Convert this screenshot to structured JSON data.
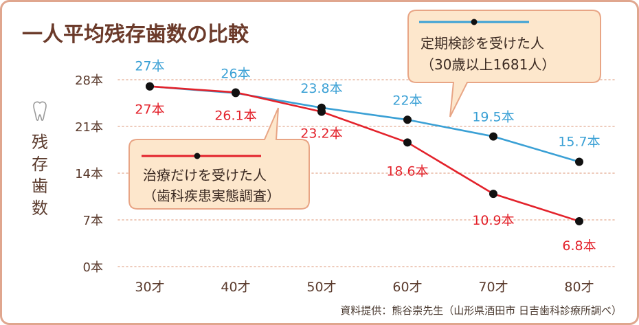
{
  "chart_data": {
    "type": "line",
    "title": "一人平均残存歯数の比較",
    "ylabel": "残存歯数",
    "categories": [
      "30才",
      "40才",
      "50才",
      "60才",
      "70才",
      "80才"
    ],
    "yticks": [
      "0本",
      "7本",
      "14本",
      "21本",
      "28本"
    ],
    "ylim": [
      0,
      28
    ],
    "grid": true,
    "series": [
      {
        "name": "定期検診を受けた人",
        "note": "（30歳以上1681人）",
        "color": "#3aa0d5",
        "values": [
          27,
          26,
          23.8,
          22,
          19.5,
          15.7
        ],
        "labels": [
          "27本",
          "26本",
          "23.8本",
          "22本",
          "19.5本",
          "15.7本"
        ]
      },
      {
        "name": "治療だけを受けた人",
        "note": "（歯科疾患実態調査）",
        "color": "#e3222b",
        "values": [
          27,
          26.1,
          23.2,
          18.6,
          10.9,
          6.8
        ],
        "labels": [
          "27本",
          "26.1本",
          "23.2本",
          "18.6本",
          "10.9本",
          "6.8本"
        ]
      }
    ],
    "source": "資料提供：熊谷崇先生（山形県酒田市 日吉歯科診療所調べ）"
  },
  "colors": {
    "frame": "#e0a68e",
    "title": "#6b3a2a",
    "axis_text": "#5a3a2c",
    "grid": "#e8b9a3",
    "callout_fill": "#fde7cc",
    "callout_stroke": "#e8a585"
  },
  "icons": {
    "tooth": "tooth-icon"
  }
}
